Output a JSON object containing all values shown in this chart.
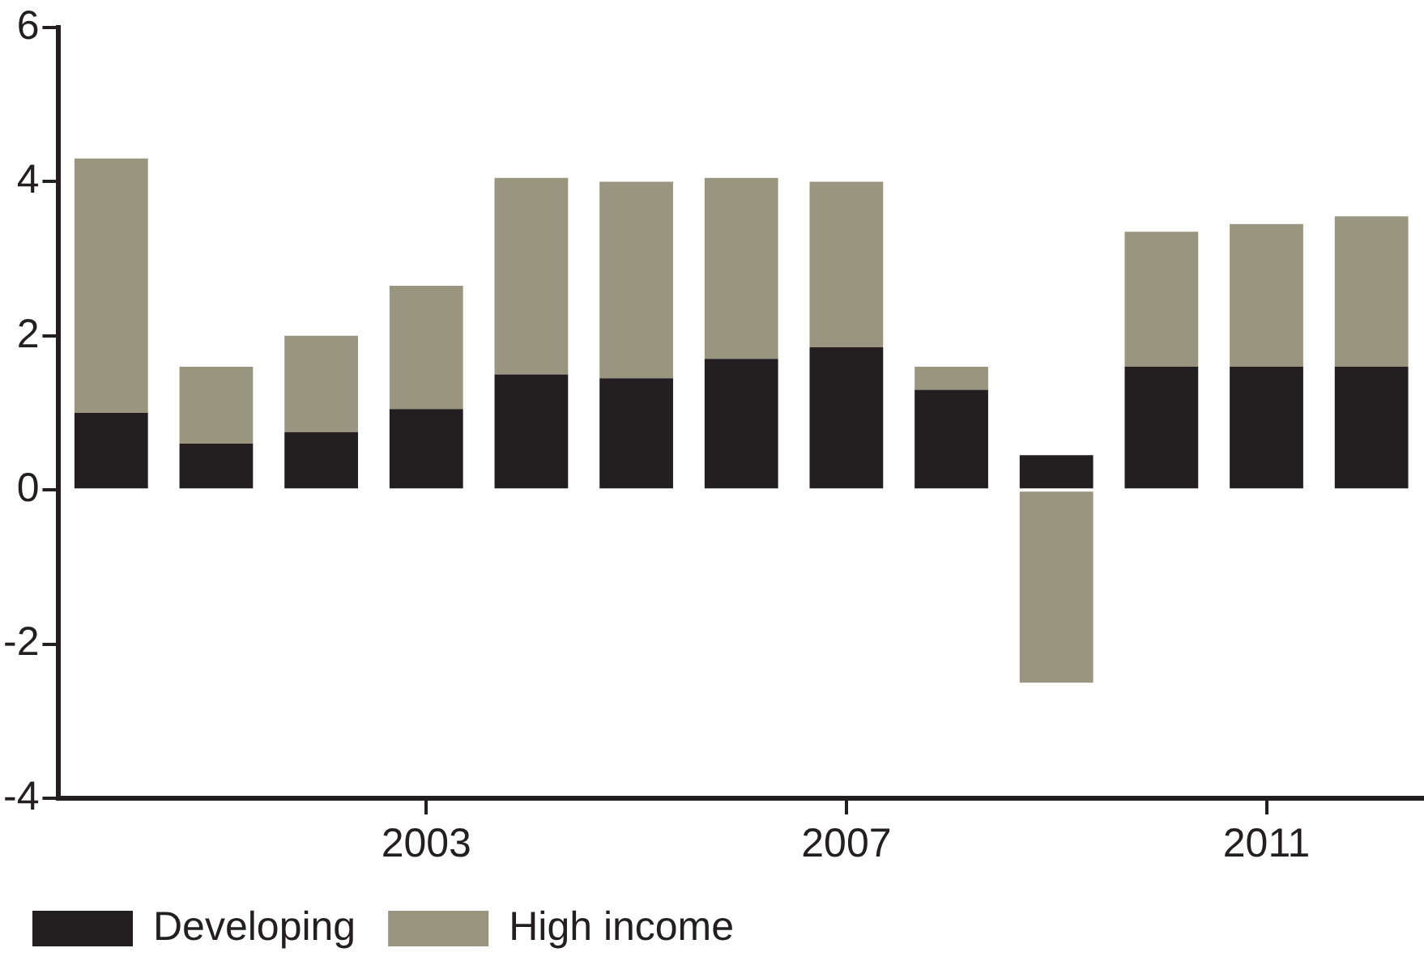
{
  "chart_data": {
    "type": "bar",
    "stacked": true,
    "categories": [
      null,
      null,
      null,
      "2003",
      null,
      null,
      null,
      "2007",
      null,
      null,
      null,
      "2011",
      null
    ],
    "series": [
      {
        "name": "Developing",
        "color": "#231f20",
        "values": [
          1.0,
          0.6,
          0.75,
          1.05,
          1.5,
          1.45,
          1.7,
          1.85,
          1.3,
          0.45,
          1.6,
          1.6,
          1.6
        ]
      },
      {
        "name": "High income",
        "color": "#99957f",
        "values": [
          3.3,
          1.0,
          1.25,
          1.6,
          2.55,
          2.55,
          2.35,
          2.15,
          0.3,
          -2.5,
          1.75,
          1.85,
          1.95
        ]
      }
    ],
    "ylim": [
      -4,
      6
    ],
    "yticks": [
      -4,
      -2,
      0,
      2,
      4,
      6
    ],
    "grid": false,
    "legend": "bottom left"
  }
}
